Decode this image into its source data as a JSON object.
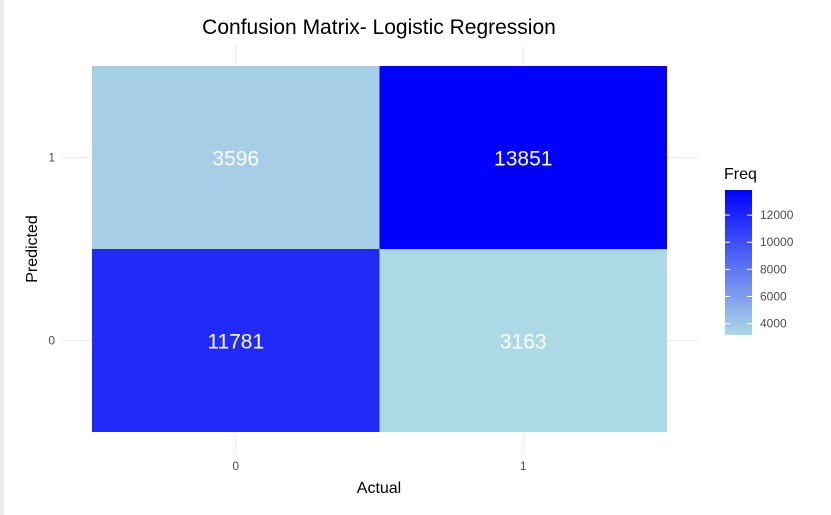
{
  "chart_data": {
    "type": "heatmap",
    "title": "Confusion Matrix- Logistic Regression",
    "xlabel": "Actual",
    "ylabel": "Predicted",
    "x_categories": [
      "0",
      "1"
    ],
    "y_categories": [
      "0",
      "1"
    ],
    "cells": [
      {
        "actual": "0",
        "predicted": "1",
        "freq": 3596,
        "label": "3596"
      },
      {
        "actual": "1",
        "predicted": "1",
        "freq": 13851,
        "label": "13851"
      },
      {
        "actual": "0",
        "predicted": "0",
        "freq": 11781,
        "label": "11781"
      },
      {
        "actual": "1",
        "predicted": "0",
        "freq": 3163,
        "label": "3163"
      }
    ],
    "legend": {
      "title": "Freq",
      "placement": "right",
      "ticks": [
        {
          "value": 4000,
          "label": "4000"
        },
        {
          "value": 6000,
          "label": "6000"
        },
        {
          "value": 8000,
          "label": "8000"
        },
        {
          "value": 10000,
          "label": "10000"
        },
        {
          "value": 12000,
          "label": "12000"
        }
      ]
    },
    "color_low": "#add8e6",
    "color_high": "#0000ff",
    "grid": true
  }
}
